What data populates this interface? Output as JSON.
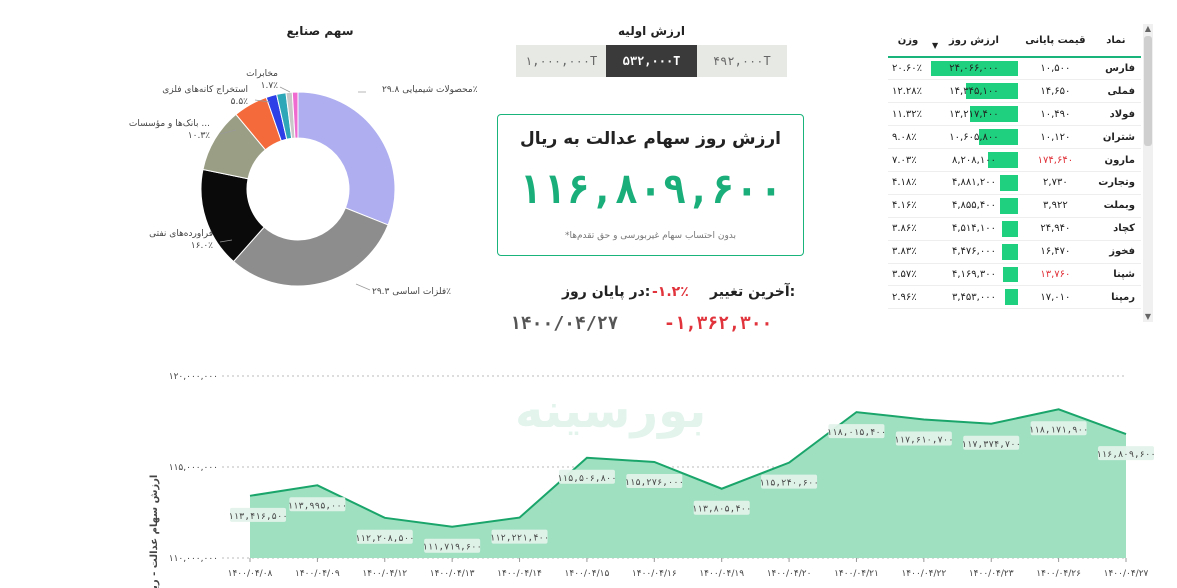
{
  "donut": {
    "title": "سهم صنایع",
    "labels": [
      {
        "name": "محصولات شیمیایی",
        "pct": "۲۹.۸٪"
      },
      {
        "name": "فلزات اساسی",
        "pct": "۲۹.۳٪"
      },
      {
        "name": "فراورده‌های نفتی",
        "pct": "۱۶.۰٪"
      },
      {
        "name": "بانک‌ها و مؤسسات ...",
        "pct": "۱۰.۳٪"
      },
      {
        "name": "استخراج کانه‌های فلزی",
        "pct": "۵.۵٪"
      },
      {
        "name": "مخابرات",
        "pct": "۱.۷٪"
      }
    ]
  },
  "initial_value": {
    "title": "ارزش اولیه",
    "options": [
      {
        "label": "۱,۰۰۰,۰۰۰T",
        "active": false
      },
      {
        "label": "۵۳۲,۰۰۰T",
        "active": true
      },
      {
        "label": "۴۹۲,۰۰۰T",
        "active": false
      }
    ]
  },
  "kpi": {
    "title": "ارزش روز سهام عدالت به ریال",
    "value": "۱۱۶,۸۰۹,۶۰۰",
    "note": "*بدون احتساب سهام غیربورسی و حق تقدم‌ها"
  },
  "change": {
    "last_label": "آخرین تغییر:",
    "pct": "-۱.۲٪",
    "eod_label": "در پایان روز:",
    "abs": "-۱,۳۶۲,۳۰۰",
    "date": "۱۴۰۰/۰۴/۲۷"
  },
  "table": {
    "headers": {
      "symbol": "نماد",
      "price": "قیمت پایانی",
      "value": "ارزش روز",
      "weight": "وزن"
    },
    "rows": [
      {
        "symbol": "فارس",
        "price": "۱۰,۵۰۰",
        "price_red": false,
        "value": "۲۴,۰۶۶,۰۰۰",
        "share": 20.6,
        "weight": "۲۰.۶۰٪"
      },
      {
        "symbol": "فملی",
        "price": "۱۴,۶۵۰",
        "price_red": false,
        "value": "۱۴,۳۴۵,۱۰۰",
        "share": 12.28,
        "weight": "۱۲.۲۸٪"
      },
      {
        "symbol": "فولاد",
        "price": "۱۰,۴۹۰",
        "price_red": false,
        "value": "۱۳,۲۱۷,۴۰۰",
        "share": 11.32,
        "weight": "۱۱.۳۲٪"
      },
      {
        "symbol": "شتران",
        "price": "۱۰,۱۲۰",
        "price_red": false,
        "value": "۱۰,۶۰۵,۸۰۰",
        "share": 9.08,
        "weight": "۹.۰۸٪"
      },
      {
        "symbol": "مارون",
        "price": "۱۷۴,۶۴۰",
        "price_red": true,
        "value": "۸,۲۰۸,۱۰۰",
        "share": 7.03,
        "weight": "۷.۰۳٪"
      },
      {
        "symbol": "وتجارت",
        "price": "۲,۷۳۰",
        "price_red": false,
        "value": "۴,۸۸۱,۲۰۰",
        "share": 4.18,
        "weight": "۴.۱۸٪"
      },
      {
        "symbol": "وبملت",
        "price": "۳,۹۲۲",
        "price_red": false,
        "value": "۴,۸۵۵,۴۰۰",
        "share": 4.16,
        "weight": "۴.۱۶٪"
      },
      {
        "symbol": "کچاد",
        "price": "۲۴,۹۴۰",
        "price_red": false,
        "value": "۴,۵۱۴,۱۰۰",
        "share": 3.86,
        "weight": "۳.۸۶٪"
      },
      {
        "symbol": "فخوز",
        "price": "۱۶,۴۷۰",
        "price_red": false,
        "value": "۴,۴۷۶,۰۰۰",
        "share": 3.83,
        "weight": "۳.۸۳٪"
      },
      {
        "symbol": "شپنا",
        "price": "۱۳,۷۶۰",
        "price_red": true,
        "value": "۴,۱۶۹,۳۰۰",
        "share": 3.57,
        "weight": "۳.۵۷٪"
      },
      {
        "symbol": "رمپنا",
        "price": "۱۷,۰۱۰",
        "price_red": false,
        "value": "۳,۴۵۳,۰۰۰",
        "share": 2.96,
        "weight": "۲.۹۶٪"
      }
    ]
  },
  "area": {
    "ylabel": "ارزش سهام عدالت - ریال",
    "yticks": [
      "۱۱۰,۰۰۰,۰۰۰",
      "۱۱۵,۰۰۰,۰۰۰",
      "۱۲۰,۰۰۰,۰۰۰"
    ],
    "watermark": "بورسینه"
  },
  "colors": {
    "accent": "#19b37c",
    "negative": "#e0333b",
    "bar": "#1fd17e",
    "area_fill": "#9fe0c1",
    "area_line": "#1aa56b"
  },
  "chart_data": [
    {
      "type": "pie",
      "title": "سهم صنایع",
      "categories": [
        "محصولات شیمیایی",
        "فلزات اساسی",
        "فراورده‌های نفتی",
        "بانک‌ها و مؤسسات ...",
        "استخراج کانه‌های فلزی",
        "مخابرات",
        "",
        "",
        ""
      ],
      "values": [
        29.8,
        29.3,
        16.0,
        10.3,
        5.5,
        1.7,
        1.5,
        1.0,
        0.9
      ],
      "colors": [
        "#aeaef0",
        "#8d8d8d",
        "#0a0a0a",
        "#9a9e85",
        "#f56a3b",
        "#2d3fe6",
        "#2ea7b8",
        "#c8c8c8",
        "#f06bd0"
      ]
    },
    {
      "type": "area",
      "x": [
        "۱۴۰۰/۰۴/۰۸",
        "۱۴۰۰/۰۴/۰۹",
        "۱۴۰۰/۰۴/۱۲",
        "۱۴۰۰/۰۴/۱۳",
        "۱۴۰۰/۰۴/۱۴",
        "۱۴۰۰/۰۴/۱۵",
        "۱۴۰۰/۰۴/۱۶",
        "۱۴۰۰/۰۴/۱۹",
        "۱۴۰۰/۰۴/۲۰",
        "۱۴۰۰/۰۴/۲۱",
        "۱۴۰۰/۰۴/۲۲",
        "۱۴۰۰/۰۴/۲۳",
        "۱۴۰۰/۰۴/۲۶",
        "۱۴۰۰/۰۴/۲۷"
      ],
      "values": [
        113416500,
        113995000,
        112208500,
        111719600,
        112221400,
        115506800,
        115276000,
        113805400,
        115240600,
        118015400,
        117610700,
        117374700,
        118171900,
        116809600
      ],
      "labels": [
        "۱۱۳,۴۱۶,۵۰۰",
        "۱۱۳,۹۹۵,۰۰۰",
        "۱۱۲,۲۰۸,۵۰۰",
        "۱۱۱,۷۱۹,۶۰۰",
        "۱۱۲,۲۲۱,۴۰۰",
        "۱۱۵,۵۰۶,۸۰۰",
        "۱۱۵,۲۷۶,۰۰۰",
        "۱۱۳,۸۰۵,۴۰۰",
        "۱۱۵,۲۴۰,۶۰۰",
        "۱۱۸,۰۱۵,۴۰۰",
        "۱۱۷,۶۱۰,۷۰۰",
        "۱۱۷,۳۷۴,۷۰۰",
        "۱۱۸,۱۷۱,۹۰۰",
        "۱۱۶,۸۰۹,۶۰۰"
      ],
      "ylabel": "ارزش سهام عدالت - ریال",
      "ylim": [
        110000000,
        120000000
      ],
      "grid": true
    }
  ]
}
